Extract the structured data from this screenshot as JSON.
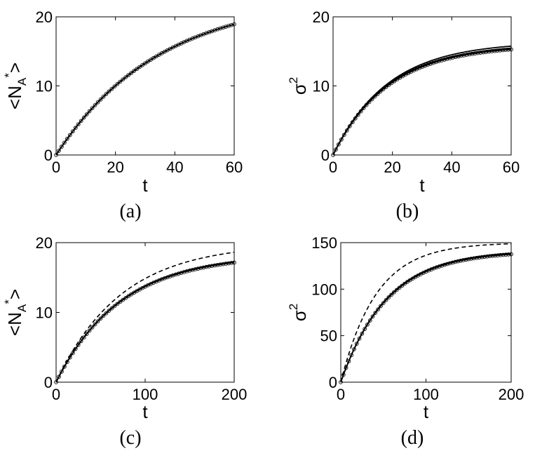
{
  "chart_data": [
    {
      "type": "line",
      "caption": "(a)",
      "xlabel": "t",
      "ylabel": {
        "base": "<N",
        "sub": "A",
        "sup": "*",
        "close": ">"
      },
      "xlim": [
        0,
        60
      ],
      "ylim": [
        0,
        20
      ],
      "xticks": [
        0,
        20,
        40,
        60
      ],
      "yticks": [
        0,
        10,
        20
      ],
      "grid": false,
      "series": [
        {
          "style": "solid",
          "marker": "circle",
          "plateau": 23.1,
          "rate": 0.0285,
          "x": [
            0,
            10,
            20,
            30,
            40,
            50,
            60
          ],
          "y": [
            0,
            5.6,
            9.9,
            13.2,
            15.7,
            17.5,
            18.8
          ]
        },
        {
          "style": "solid",
          "marker": "none",
          "plateau": 23.1,
          "rate": 0.0285,
          "x": [
            0,
            10,
            20,
            30,
            40,
            50,
            60
          ],
          "y": [
            0,
            5.6,
            9.9,
            13.2,
            15.7,
            17.5,
            18.8
          ]
        }
      ]
    },
    {
      "type": "line",
      "caption": "(b)",
      "xlabel": "t",
      "ylabel": {
        "base": "σ",
        "sup": "2"
      },
      "xlim": [
        0,
        60
      ],
      "ylim": [
        0,
        20
      ],
      "xticks": [
        0,
        20,
        40,
        60
      ],
      "yticks": [
        0,
        10,
        20
      ],
      "grid": false,
      "series": [
        {
          "style": "solid",
          "marker": "none",
          "plateau": 16.4,
          "rate": 0.054,
          "x": [
            0,
            10,
            20,
            30,
            40,
            50,
            60
          ],
          "y": [
            0,
            6.3,
            10.2,
            12.6,
            14.1,
            15.0,
            15.8
          ]
        },
        {
          "style": "solid",
          "marker": "none",
          "plateau": 16.1,
          "rate": 0.054,
          "x": [
            0,
            10,
            20,
            30,
            40,
            50,
            60
          ],
          "y": [
            0,
            6.2,
            10.0,
            12.4,
            13.8,
            14.8,
            15.5
          ]
        },
        {
          "style": "solid",
          "marker": "circle",
          "plateau": 15.9,
          "rate": 0.054,
          "x": [
            0,
            10,
            20,
            30,
            40,
            50,
            60
          ],
          "y": [
            0,
            6.1,
            9.9,
            12.2,
            13.7,
            14.6,
            15.3
          ]
        }
      ]
    },
    {
      "type": "line",
      "caption": "(c)",
      "xlabel": "t",
      "ylabel": {
        "base": "<N",
        "sub": "A",
        "sup": "*",
        "close": ">"
      },
      "xlim": [
        0,
        200
      ],
      "ylim": [
        0,
        20
      ],
      "xticks": [
        0,
        100,
        200
      ],
      "yticks": [
        0,
        10,
        20
      ],
      "grid": false,
      "series": [
        {
          "style": "dashed",
          "marker": "none",
          "plateau": 19.9,
          "rate": 0.0137,
          "x": [
            0,
            50,
            100,
            150,
            200
          ],
          "y": [
            0,
            9.5,
            14.4,
            17.1,
            18.7
          ]
        },
        {
          "style": "solid",
          "marker": "none",
          "plateau": 18.4,
          "rate": 0.0138,
          "x": [
            0,
            50,
            100,
            150,
            200
          ],
          "y": [
            0,
            9.0,
            13.4,
            15.8,
            17.2
          ]
        },
        {
          "style": "solid",
          "marker": "circle",
          "plateau": 18.3,
          "rate": 0.0138,
          "x": [
            0,
            50,
            100,
            150,
            200
          ],
          "y": [
            0,
            8.9,
            13.3,
            15.7,
            17.1
          ]
        }
      ]
    },
    {
      "type": "line",
      "caption": "(d)",
      "xlabel": "t",
      "ylabel": {
        "base": "σ",
        "sup": "2"
      },
      "xlim": [
        0,
        200
      ],
      "ylim": [
        0,
        150
      ],
      "xticks": [
        0,
        100,
        200
      ],
      "yticks": [
        0,
        50,
        100,
        150
      ],
      "grid": false,
      "series": [
        {
          "style": "dashed",
          "marker": "none",
          "plateau": 150,
          "rate": 0.024,
          "x": [
            0,
            50,
            100,
            150,
            200
          ],
          "y": [
            0,
            104,
            136,
            146,
            149
          ]
        },
        {
          "style": "solid",
          "marker": "none",
          "plateau": 142,
          "rate": 0.0185,
          "x": [
            0,
            50,
            100,
            150,
            200
          ],
          "y": [
            0,
            86,
            119,
            132,
            138
          ]
        },
        {
          "style": "solid",
          "marker": "circle",
          "plateau": 141,
          "rate": 0.0185,
          "x": [
            0,
            50,
            100,
            150,
            200
          ],
          "y": [
            0,
            85,
            118,
            131,
            137
          ]
        }
      ]
    }
  ]
}
